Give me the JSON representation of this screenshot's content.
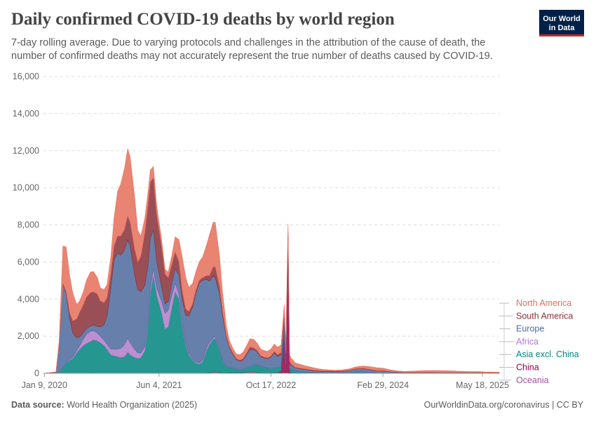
{
  "header": {
    "title": "Daily confirmed COVID-19 deaths by world region",
    "subtitle": "7-day rolling average. Due to varying protocols and challenges in the attribution of the cause of death, the number of confirmed deaths may not accurately represent the true number of deaths caused by COVID-19.",
    "logo_line1": "Our World",
    "logo_line2": "in Data"
  },
  "footer": {
    "source_label": "Data source:",
    "source_text": "World Health Organization (2025)",
    "link": "OurWorldinData.org/coronavirus | CC BY"
  },
  "chart_data": {
    "type": "area",
    "stacked": true,
    "title": "Daily confirmed COVID-19 deaths by world region",
    "ylim": [
      0,
      16000
    ],
    "xlim": [
      "2020-01-05",
      "2025-08-01"
    ],
    "y_ticks": [
      0,
      2000,
      4000,
      6000,
      8000,
      10000,
      12000,
      14000,
      16000
    ],
    "y_tick_labels": [
      "0",
      "2,000",
      "4,000",
      "6,000",
      "8,000",
      "10,000",
      "12,000",
      "14,000",
      "16,000"
    ],
    "x_ticks": [
      "2020-01-09",
      "2021-06-04",
      "2022-10-17",
      "2024-02-29",
      "2025-05-18"
    ],
    "x_tick_labels": [
      "Jan 9, 2020",
      "Jun 4, 2021",
      "Oct 17, 2022",
      "Feb 29, 2024",
      "May 18, 2025"
    ],
    "grid": true,
    "legend_position": "right",
    "x": [
      "2020-01-05",
      "2020-03-01",
      "2020-03-15",
      "2020-04-01",
      "2020-04-15",
      "2020-05-01",
      "2020-05-15",
      "2020-06-01",
      "2020-06-15",
      "2020-07-01",
      "2020-07-15",
      "2020-08-01",
      "2020-08-15",
      "2020-09-01",
      "2020-09-15",
      "2020-10-01",
      "2020-10-15",
      "2020-11-01",
      "2020-11-15",
      "2020-12-01",
      "2020-12-15",
      "2021-01-01",
      "2021-01-15",
      "2021-01-26",
      "2021-02-15",
      "2021-03-01",
      "2021-03-15",
      "2021-04-01",
      "2021-04-15",
      "2021-04-26",
      "2021-05-10",
      "2021-05-25",
      "2021-06-15",
      "2021-07-01",
      "2021-07-15",
      "2021-08-01",
      "2021-08-15",
      "2021-09-01",
      "2021-09-15",
      "2021-10-01",
      "2021-10-15",
      "2021-11-01",
      "2021-11-15",
      "2021-12-01",
      "2021-12-15",
      "2022-01-01",
      "2022-01-15",
      "2022-02-01",
      "2022-02-10",
      "2022-03-01",
      "2022-03-15",
      "2022-04-01",
      "2022-04-15",
      "2022-05-01",
      "2022-05-15",
      "2022-06-01",
      "2022-06-15",
      "2022-07-01",
      "2022-07-15",
      "2022-08-01",
      "2022-08-15",
      "2022-09-01",
      "2022-09-15",
      "2022-10-01",
      "2022-10-15",
      "2022-11-01",
      "2022-11-15",
      "2022-12-01",
      "2022-12-15",
      "2022-12-22",
      "2023-01-01",
      "2023-01-08",
      "2023-01-15",
      "2023-01-22",
      "2023-02-01",
      "2023-03-01",
      "2023-04-01",
      "2023-05-01",
      "2023-06-01",
      "2023-07-01",
      "2023-08-01",
      "2023-09-01",
      "2023-10-01",
      "2023-11-01",
      "2023-12-01",
      "2024-01-01",
      "2024-02-01",
      "2024-03-01",
      "2024-04-01",
      "2024-05-01",
      "2024-06-01",
      "2024-07-01",
      "2024-08-01",
      "2024-09-01",
      "2024-10-01",
      "2024-11-01",
      "2024-12-01",
      "2025-01-01",
      "2025-02-01",
      "2025-03-01",
      "2025-04-01",
      "2025-05-01",
      "2025-06-01",
      "2025-07-01",
      "2025-08-01"
    ],
    "series": [
      {
        "name": "Oceania",
        "color": "#a2559c",
        "values": [
          0,
          0,
          0,
          1,
          3,
          2,
          1,
          0,
          0,
          2,
          8,
          15,
          12,
          5,
          2,
          1,
          0,
          0,
          0,
          0,
          0,
          0,
          0,
          0,
          0,
          0,
          0,
          0,
          0,
          0,
          0,
          0,
          0,
          0,
          0,
          0,
          2,
          5,
          6,
          4,
          5,
          6,
          4,
          2,
          3,
          10,
          40,
          60,
          70,
          45,
          30,
          25,
          30,
          35,
          35,
          30,
          35,
          55,
          80,
          80,
          50,
          30,
          25,
          25,
          25,
          40,
          40,
          40,
          50,
          45,
          40,
          35,
          25,
          20,
          15,
          10,
          10,
          8,
          5,
          5,
          5,
          5,
          5,
          5,
          5,
          5,
          5,
          5,
          5,
          5,
          3,
          3,
          3,
          3,
          3,
          3,
          3,
          3,
          3,
          3,
          3,
          3,
          3,
          3,
          3
        ]
      },
      {
        "name": "China",
        "color": "#970046",
        "values": [
          0,
          8,
          2,
          3,
          0,
          0,
          0,
          0,
          0,
          0,
          0,
          0,
          0,
          0,
          0,
          0,
          0,
          0,
          0,
          0,
          0,
          0,
          0,
          0,
          0,
          0,
          0,
          0,
          0,
          0,
          0,
          0,
          0,
          0,
          0,
          0,
          0,
          0,
          0,
          0,
          0,
          0,
          0,
          0,
          0,
          0,
          0,
          0,
          0,
          0,
          0,
          0,
          5,
          10,
          8,
          5,
          2,
          2,
          0,
          0,
          0,
          0,
          0,
          0,
          0,
          0,
          5,
          50,
          2200,
          20,
          7000,
          30,
          10,
          5,
          0,
          0,
          0,
          0,
          0,
          0,
          0,
          0,
          0,
          0,
          0,
          0,
          0,
          0,
          0,
          0,
          0,
          0,
          0,
          0,
          0,
          0,
          0,
          0,
          0,
          0,
          0,
          0,
          0,
          0,
          0
        ]
      },
      {
        "name": "Asia excl. China",
        "color": "#00847e",
        "values": [
          0,
          5,
          50,
          300,
          550,
          700,
          800,
          1100,
          1300,
          1500,
          1600,
          1700,
          1800,
          1750,
          1650,
          1500,
          1300,
          1000,
          950,
          900,
          850,
          900,
          1150,
          1000,
          850,
          800,
          850,
          1200,
          2500,
          4300,
          5300,
          4200,
          3300,
          2400,
          2500,
          3600,
          4400,
          4000,
          2600,
          1500,
          1000,
          700,
          550,
          500,
          600,
          1200,
          1500,
          1800,
          1800,
          1200,
          600,
          350,
          300,
          250,
          180,
          150,
          180,
          250,
          300,
          380,
          400,
          350,
          300,
          250,
          230,
          250,
          250,
          300,
          350,
          450,
          200,
          220,
          180,
          150,
          120,
          70,
          50,
          40,
          35,
          30,
          25,
          20,
          40,
          70,
          50,
          30,
          20,
          15,
          10,
          10,
          10,
          8,
          8,
          8,
          8,
          6,
          5,
          5,
          5,
          5,
          5,
          5,
          5,
          5,
          5
        ]
      },
      {
        "name": "Africa",
        "color": "#b27ac8",
        "values": [
          0,
          2,
          5,
          15,
          35,
          50,
          70,
          120,
          200,
          350,
          500,
          550,
          480,
          420,
          350,
          300,
          280,
          300,
          350,
          400,
          500,
          650,
          750,
          650,
          450,
          300,
          250,
          230,
          250,
          300,
          350,
          400,
          600,
          850,
          900,
          650,
          450,
          300,
          200,
          120,
          80,
          60,
          50,
          70,
          100,
          150,
          120,
          80,
          70,
          50,
          30,
          20,
          15,
          10,
          10,
          10,
          10,
          10,
          15,
          15,
          12,
          10,
          8,
          5,
          5,
          5,
          5,
          5,
          5,
          5,
          5,
          5,
          5,
          5,
          5,
          3,
          2,
          2,
          2,
          2,
          2,
          2,
          2,
          2,
          2,
          2,
          2,
          2,
          2,
          2,
          1,
          1,
          1,
          1,
          1,
          1,
          1,
          1,
          1,
          1,
          1,
          1,
          1,
          1,
          1
        ]
      },
      {
        "name": "Europe",
        "color": "#4c6a9c",
        "values": [
          0,
          50,
          1500,
          4500,
          3700,
          2200,
          1300,
          700,
          450,
          350,
          300,
          280,
          300,
          350,
          500,
          800,
          1500,
          3300,
          4800,
          5200,
          5000,
          5100,
          5300,
          5200,
          4000,
          3400,
          3300,
          3300,
          3000,
          2700,
          2100,
          1400,
          800,
          500,
          450,
          650,
          800,
          1000,
          1200,
          1500,
          2000,
          2800,
          3700,
          4300,
          4300,
          3700,
          3300,
          3300,
          3200,
          3000,
          2400,
          1500,
          1000,
          700,
          500,
          450,
          500,
          700,
          900,
          800,
          700,
          500,
          500,
          500,
          600,
          800,
          600,
          600,
          500,
          400,
          300,
          250,
          200,
          200,
          150,
          150,
          120,
          80,
          60,
          60,
          60,
          80,
          100,
          150,
          200,
          150,
          100,
          100,
          60,
          40,
          30,
          30,
          30,
          30,
          30,
          30,
          30,
          30,
          30,
          30,
          30,
          30,
          20,
          20,
          20
        ]
      },
      {
        "name": "South America",
        "color": "#883039",
        "values": [
          0,
          0,
          5,
          40,
          120,
          300,
          650,
          1000,
          1350,
          1500,
          1700,
          1800,
          1800,
          1750,
          1400,
          1200,
          1000,
          800,
          750,
          900,
          1050,
          1100,
          1300,
          1300,
          1400,
          1500,
          1900,
          2800,
          3200,
          3000,
          2800,
          2500,
          2200,
          1600,
          1300,
          1000,
          900,
          700,
          500,
          350,
          250,
          180,
          150,
          150,
          150,
          200,
          300,
          500,
          600,
          400,
          250,
          100,
          80,
          60,
          60,
          60,
          70,
          90,
          120,
          100,
          80,
          60,
          50,
          50,
          50,
          80,
          100,
          120,
          150,
          150,
          120,
          100,
          70,
          50,
          30,
          30,
          30,
          30,
          30,
          30,
          30,
          20,
          20,
          20,
          20,
          20,
          20,
          20,
          20,
          20,
          10,
          10,
          10,
          10,
          10,
          10,
          10,
          10,
          10,
          10,
          10,
          10,
          10,
          10,
          10
        ]
      },
      {
        "name": "North America",
        "color": "#e56e5a",
        "values": [
          0,
          10,
          200,
          2000,
          2400,
          2000,
          1500,
          800,
          600,
          700,
          900,
          1100,
          1100,
          900,
          700,
          700,
          700,
          900,
          1500,
          2400,
          2800,
          3300,
          3600,
          3500,
          2800,
          1700,
          1100,
          800,
          700,
          650,
          600,
          500,
          350,
          250,
          300,
          500,
          800,
          1200,
          1800,
          1700,
          1300,
          1100,
          1000,
          1000,
          1100,
          1600,
          2200,
          2400,
          2400,
          1600,
          1000,
          500,
          300,
          250,
          250,
          300,
          350,
          400,
          450,
          450,
          400,
          350,
          350,
          350,
          380,
          400,
          400,
          420,
          450,
          400,
          400,
          350,
          320,
          300,
          250,
          200,
          150,
          120,
          80,
          60,
          50,
          60,
          70,
          100,
          120,
          150,
          150,
          130,
          90,
          60,
          50,
          60,
          80,
          90,
          100,
          100,
          90,
          80,
          60,
          50,
          40,
          40,
          30,
          30,
          20
        ]
      }
    ],
    "legend_order": [
      "North America",
      "South America",
      "Europe",
      "Africa",
      "Asia excl. China",
      "China",
      "Oceania"
    ]
  }
}
